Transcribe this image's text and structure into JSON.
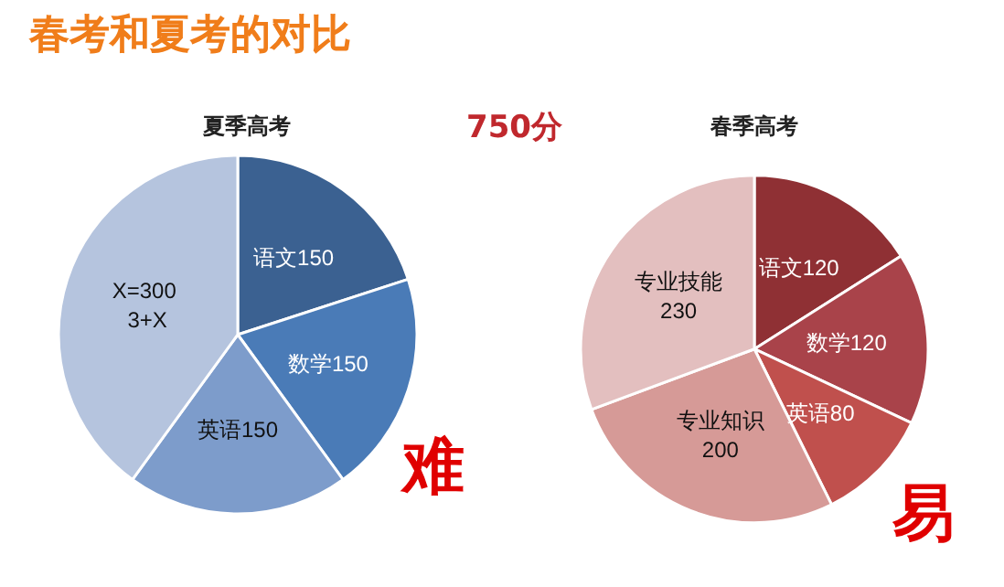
{
  "chart_data": [
    {
      "type": "pie",
      "title": "夏季高考",
      "categories": [
        "语文150",
        "数学150",
        "英语150",
        "X=300 3+X"
      ],
      "values": [
        150,
        150,
        150,
        300
      ],
      "colors": [
        "#3b6191",
        "#4a7bb7",
        "#7d9ccb",
        "#b5c4de"
      ],
      "annotations": [
        "春考和夏考的对比",
        "750分",
        "难"
      ]
    },
    {
      "type": "pie",
      "title": "春季高考",
      "categories": [
        "语文120",
        "数学120",
        "英语80",
        "专业知识200",
        "专业技能230"
      ],
      "values": [
        120,
        120,
        80,
        200,
        230
      ],
      "colors": [
        "#8f3034",
        "#a9434a",
        "#c0504d",
        "#d69a97",
        "#e3bfbf"
      ],
      "annotations": [
        "易"
      ]
    }
  ]
}
